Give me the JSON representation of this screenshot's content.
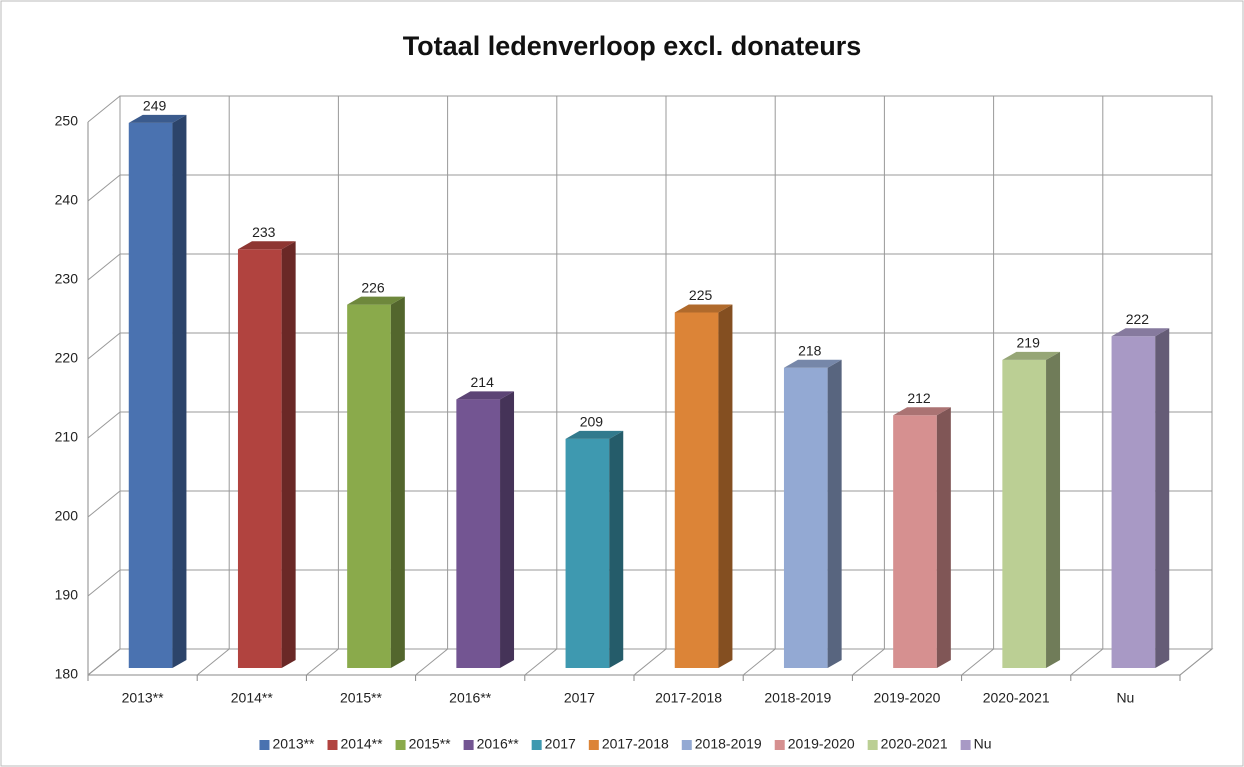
{
  "chart_data": {
    "type": "bar",
    "title": "Totaal ledenverloop excl. donateurs",
    "categories": [
      "2013**",
      "2014**",
      "2015**",
      "2016**",
      "2017",
      "2017-2018",
      "2018-2019",
      "2019-2020",
      "2020-2021",
      "Nu"
    ],
    "values": [
      249,
      233,
      226,
      214,
      209,
      225,
      218,
      212,
      219,
      222
    ],
    "colors": [
      "#4a72b0",
      "#b1433f",
      "#8aaa4b",
      "#735592",
      "#3e99b0",
      "#dc8437",
      "#93a9d3",
      "#d69090",
      "#bbcf94",
      "#a899c5"
    ],
    "ylim": [
      180,
      250
    ],
    "yticks": [
      180,
      190,
      200,
      210,
      220,
      230,
      240,
      250
    ],
    "grid": true,
    "legend": "bottom"
  }
}
